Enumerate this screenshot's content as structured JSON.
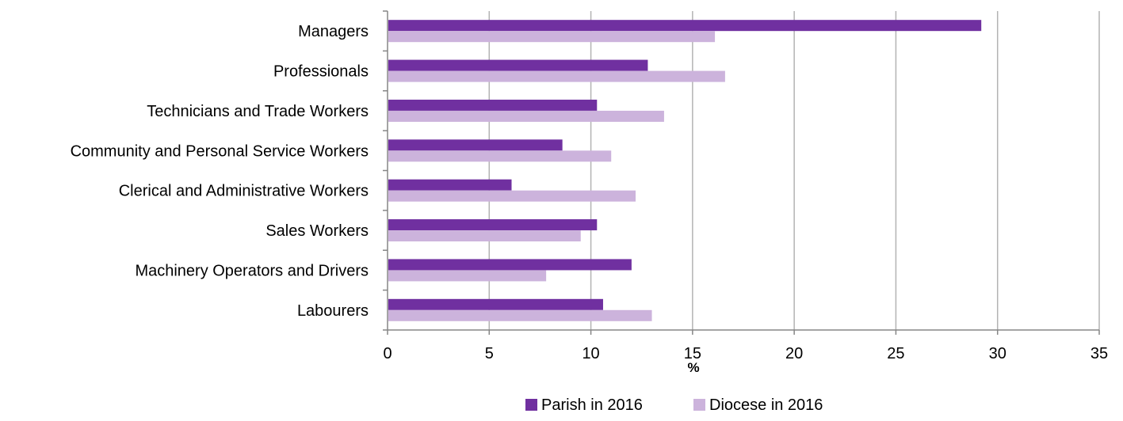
{
  "chart_data": {
    "type": "bar",
    "orientation": "horizontal",
    "categories": [
      "Managers",
      "Professionals",
      "Technicians and Trade Workers",
      "Community and Personal Service Workers",
      "Clerical and Administrative Workers",
      "Sales Workers",
      "Machinery Operators and Drivers",
      "Labourers"
    ],
    "series": [
      {
        "name": "Parish in 2016",
        "color": "#7030a0",
        "values": [
          29.2,
          12.8,
          10.3,
          8.6,
          6.1,
          10.3,
          12.0,
          10.6
        ]
      },
      {
        "name": "Diocese in 2016",
        "color": "#ccb3dc",
        "values": [
          16.1,
          16.6,
          13.6,
          11.0,
          12.2,
          9.5,
          7.8,
          13.0
        ]
      }
    ],
    "xlabel": "%",
    "xlim": [
      0,
      35
    ],
    "xticks": [
      "0",
      "5",
      "10",
      "15",
      "20",
      "25",
      "30",
      "35"
    ],
    "grid": "vertical",
    "legend": "bottom"
  }
}
